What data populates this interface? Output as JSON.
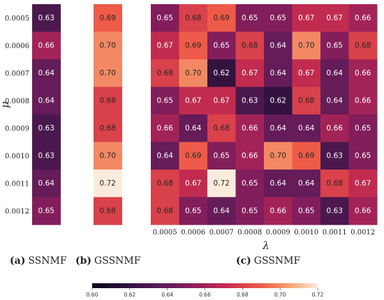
{
  "mu_ticks": [
    "0.0005",
    "0.0006",
    "0.0007",
    "0.0008",
    "0.0009",
    "0.0010",
    "0.0011",
    "0.0012"
  ],
  "lambda_ticks": [
    "0.0005",
    "0.0006",
    "0.0007",
    "0.0008",
    "0.0009",
    "0.0010",
    "0.0011",
    "0.0012"
  ],
  "ylabel": "μ",
  "xlabel": "λ",
  "captions": {
    "a": {
      "letter": "(a)",
      "name": "SSNMF"
    },
    "b": {
      "letter": "(b)",
      "name": "GSSNMF"
    },
    "c": {
      "letter": "(c)",
      "name": "GSSNMF"
    }
  },
  "colorbar": {
    "min": 0.6,
    "max": 0.72,
    "ticks": [
      "0.60",
      "0.62",
      "0.64",
      "0.66",
      "0.68",
      "0.70",
      "0.72"
    ]
  },
  "chart_data": [
    {
      "type": "heatmap",
      "caption": "(a) SSNMF",
      "y": [
        "0.0005",
        "0.0006",
        "0.0007",
        "0.0008",
        "0.0009",
        "0.0010",
        "0.0011",
        "0.0012"
      ],
      "ylabel": "μ",
      "values": [
        [
          0.63
        ],
        [
          0.66
        ],
        [
          0.64
        ],
        [
          0.64
        ],
        [
          0.63
        ],
        [
          0.63
        ],
        [
          0.64
        ],
        [
          0.65
        ]
      ]
    },
    {
      "type": "heatmap",
      "caption": "(b) GSSNMF",
      "y": [
        "0.0005",
        "0.0006",
        "0.0007",
        "0.0008",
        "0.0009",
        "0.0010",
        "0.0011",
        "0.0012"
      ],
      "values": [
        [
          0.69
        ],
        [
          0.7
        ],
        [
          0.7
        ],
        [
          0.68
        ],
        [
          0.68
        ],
        [
          0.7
        ],
        [
          0.72
        ],
        [
          0.68
        ]
      ]
    },
    {
      "type": "heatmap",
      "caption": "(c) GSSNMF",
      "x": [
        "0.0005",
        "0.0006",
        "0.0007",
        "0.0008",
        "0.0009",
        "0.0010",
        "0.0011",
        "0.0012"
      ],
      "y": [
        "0.0005",
        "0.0006",
        "0.0007",
        "0.0008",
        "0.0009",
        "0.0010",
        "0.0011",
        "0.0012"
      ],
      "xlabel": "λ",
      "values": [
        [
          0.65,
          0.68,
          0.69,
          0.65,
          0.65,
          0.67,
          0.67,
          0.66
        ],
        [
          0.67,
          0.69,
          0.65,
          0.68,
          0.64,
          0.7,
          0.65,
          0.68
        ],
        [
          0.68,
          0.7,
          0.62,
          0.67,
          0.64,
          0.67,
          0.64,
          0.66
        ],
        [
          0.65,
          0.67,
          0.67,
          0.63,
          0.62,
          0.68,
          0.64,
          0.66
        ],
        [
          0.66,
          0.64,
          0.68,
          0.66,
          0.64,
          0.64,
          0.66,
          0.65
        ],
        [
          0.64,
          0.69,
          0.65,
          0.66,
          0.7,
          0.69,
          0.63,
          0.65
        ],
        [
          0.68,
          0.67,
          0.72,
          0.65,
          0.64,
          0.64,
          0.68,
          0.67
        ],
        [
          0.68,
          0.65,
          0.64,
          0.65,
          0.66,
          0.65,
          0.63,
          0.66
        ]
      ],
      "colorscale": "rocket",
      "vmin": 0.6,
      "vmax": 0.72
    }
  ]
}
